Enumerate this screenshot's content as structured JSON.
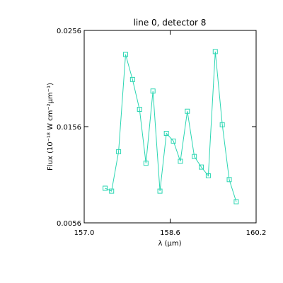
{
  "chart_data": {
    "type": "line",
    "title": "line 0, detector 8",
    "xlabel": "λ (μm)",
    "ylabel": "Flux (10⁻¹⁸ W cm⁻²μm⁻¹)",
    "xlim": [
      157.0,
      160.2
    ],
    "ylim": [
      0.0056,
      0.0256
    ],
    "xticks": [
      157.0,
      158.6,
      160.2
    ],
    "xtick_labels": [
      "157.0",
      "158.6",
      "160.2"
    ],
    "yticks": [
      0.0056,
      0.0156,
      0.0256
    ],
    "ytick_labels": [
      "0.0056",
      "0.0156",
      "0.0256"
    ],
    "grid": false,
    "series": [
      {
        "color": "#2ad6b2",
        "marker": "square",
        "x": [
          157.39,
          157.51,
          157.64,
          157.77,
          157.9,
          158.03,
          158.15,
          158.28,
          158.41,
          158.53,
          158.66,
          158.79,
          158.92,
          159.05,
          159.18,
          159.31,
          159.44,
          159.57,
          159.7,
          159.83
        ],
        "y": [
          0.0092,
          0.0089,
          0.013,
          0.0231,
          0.0205,
          0.0174,
          0.0118,
          0.0193,
          0.0089,
          0.0149,
          0.0141,
          0.012,
          0.0172,
          0.0125,
          0.0114,
          0.0105,
          0.0234,
          0.0158,
          0.0101,
          0.0078
        ]
      }
    ]
  }
}
